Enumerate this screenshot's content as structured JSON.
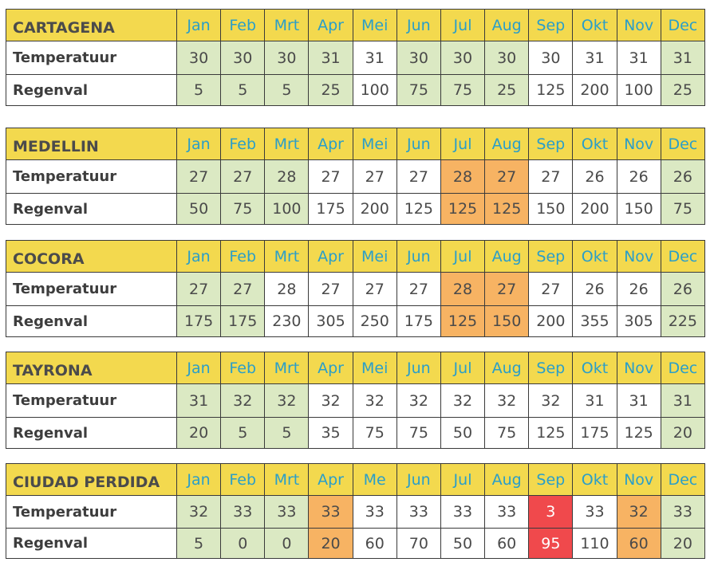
{
  "colors": {
    "header": "#f3d94e",
    "month": "#2a9ec9",
    "green": "#dbe9c3",
    "orange": "#f7b363",
    "red": "#f0494c"
  },
  "tables": [
    {
      "name": "CARTAGENA",
      "months": [
        "Jan",
        "Feb",
        "Mrt",
        "Apr",
        "Mei",
        "Jun",
        "Jul",
        "Aug",
        "Sep",
        "Okt",
        "Nov",
        "Dec"
      ],
      "rows": [
        {
          "label": "Temperatuur",
          "values": [
            "30",
            "30",
            "30",
            "31",
            "31",
            "30",
            "30",
            "30",
            "30",
            "31",
            "31",
            "31"
          ],
          "hl": [
            "g",
            "g",
            "g",
            "g",
            "",
            "g",
            "g",
            "g",
            "",
            "",
            "",
            "g"
          ]
        },
        {
          "label": "Regenval",
          "values": [
            "5",
            "5",
            "5",
            "25",
            "100",
            "75",
            "75",
            "25",
            "125",
            "200",
            "100",
            "25"
          ],
          "hl": [
            "g",
            "g",
            "g",
            "g",
            "",
            "g",
            "g",
            "g",
            "",
            "",
            "",
            "g"
          ]
        }
      ]
    },
    {
      "name": "MEDELLIN",
      "months": [
        "Jan",
        "Feb",
        "Mrt",
        "Apr",
        "Mei",
        "Jun",
        "Jul",
        "Aug",
        "Sep",
        "Okt",
        "Nov",
        "Dec"
      ],
      "rows": [
        {
          "label": "Temperatuur",
          "values": [
            "27",
            "27",
            "28",
            "27",
            "27",
            "27",
            "28",
            "27",
            "27",
            "26",
            "26",
            "26"
          ],
          "hl": [
            "g",
            "g",
            "g",
            "",
            "",
            "",
            "o",
            "o",
            "",
            "",
            "",
            "g"
          ]
        },
        {
          "label": "Regenval",
          "values": [
            "50",
            "75",
            "100",
            "175",
            "200",
            "125",
            "125",
            "125",
            "150",
            "200",
            "150",
            "75"
          ],
          "hl": [
            "g",
            "g",
            "g",
            "",
            "",
            "",
            "o",
            "o",
            "",
            "",
            "",
            "g"
          ]
        }
      ]
    },
    {
      "name": "COCORA",
      "months": [
        "Jan",
        "Feb",
        "Mrt",
        "Apr",
        "Mei",
        "Jun",
        "Jul",
        "Aug",
        "Sep",
        "Okt",
        "Nov",
        "Dec"
      ],
      "rows": [
        {
          "label": "Temperatuur",
          "values": [
            "27",
            "27",
            "28",
            "27",
            "27",
            "27",
            "28",
            "27",
            "27",
            "26",
            "26",
            "26"
          ],
          "hl": [
            "g",
            "g",
            "",
            "",
            "",
            "",
            "o",
            "o",
            "",
            "",
            "",
            "g"
          ]
        },
        {
          "label": "Regenval",
          "values": [
            "175",
            "175",
            "230",
            "305",
            "250",
            "175",
            "125",
            "150",
            "200",
            "355",
            "305",
            "225"
          ],
          "hl": [
            "g",
            "g",
            "",
            "",
            "",
            "",
            "o",
            "o",
            "",
            "",
            "",
            "g"
          ]
        }
      ]
    },
    {
      "name": "TAYRONA",
      "months": [
        "Jan",
        "Feb",
        "Mrt",
        "Apr",
        "Mei",
        "Jun",
        "Jul",
        "Aug",
        "Sep",
        "Okt",
        "Nov",
        "Dec"
      ],
      "rows": [
        {
          "label": "Temperatuur",
          "values": [
            "31",
            "32",
            "32",
            "32",
            "32",
            "32",
            "32",
            "32",
            "32",
            "31",
            "31",
            "31"
          ],
          "hl": [
            "g",
            "g",
            "g",
            "",
            "",
            "",
            "",
            "",
            "",
            "",
            "",
            "g"
          ]
        },
        {
          "label": "Regenval",
          "values": [
            "20",
            "5",
            "5",
            "35",
            "75",
            "75",
            "50",
            "75",
            "125",
            "175",
            "125",
            "20"
          ],
          "hl": [
            "g",
            "g",
            "g",
            "",
            "",
            "",
            "",
            "",
            "",
            "",
            "",
            "g"
          ]
        }
      ]
    },
    {
      "name": "CIUDAD PERDIDA",
      "months": [
        "Jan",
        "Feb",
        "Mrt",
        "Apr",
        "Me",
        "Jun",
        "Jul",
        "Aug",
        "Sep",
        "Okt",
        "Nov",
        "Dec"
      ],
      "rows": [
        {
          "label": "Temperatuur",
          "values": [
            "32",
            "33",
            "33",
            "33",
            "33",
            "33",
            "33",
            "33",
            "3",
            "33",
            "32",
            "33"
          ],
          "hl": [
            "g",
            "g",
            "g",
            "o",
            "",
            "",
            "",
            "",
            "r",
            "",
            "o",
            "g"
          ]
        },
        {
          "label": "Regenval",
          "values": [
            "5",
            "0",
            "0",
            "20",
            "60",
            "70",
            "50",
            "60",
            "95",
            "110",
            "60",
            "20"
          ],
          "hl": [
            "g",
            "g",
            "g",
            "o",
            "",
            "",
            "",
            "",
            "r",
            "",
            "o",
            "g"
          ]
        }
      ]
    }
  ]
}
